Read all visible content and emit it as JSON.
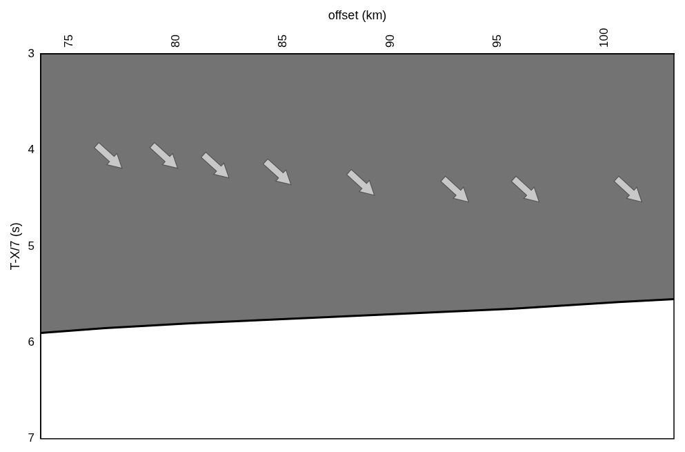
{
  "chart_data": {
    "type": "seismic_section",
    "x_label": "offset (km)",
    "y_label": "T-X/7 (s)",
    "xlim": [
      73,
      102.6
    ],
    "xticks": [
      75,
      80,
      85,
      90,
      95,
      100
    ],
    "ylim": [
      3,
      7
    ],
    "yticks": [
      3,
      4,
      5,
      6,
      7
    ],
    "grid": false,
    "series": [
      {
        "type": "line",
        "color": "#000000",
        "line_style": "solid",
        "x": [
          73,
          76,
          80,
          85,
          90,
          95,
          100,
          102.6
        ],
        "values": [
          5.9,
          5.85,
          5.8,
          5.75,
          5.7,
          5.65,
          5.58,
          5.55
        ]
      },
      {
        "type": "scatter",
        "color": "#c8c8c8",
        "marker": "arrow",
        "x": [
          76.8,
          79.4,
          81.8,
          84.7,
          88.6,
          93.0,
          96.3,
          101.1
        ],
        "values": [
          4.19,
          4.19,
          4.29,
          4.36,
          4.47,
          4.54,
          4.54,
          4.54
        ]
      }
    ]
  }
}
